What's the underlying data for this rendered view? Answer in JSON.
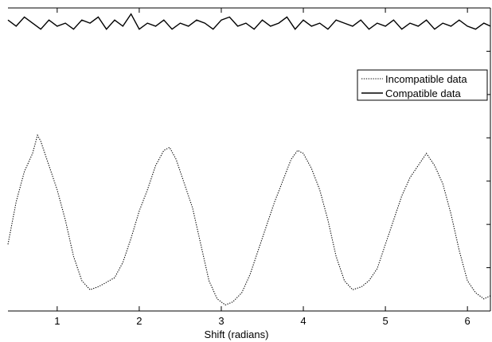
{
  "chart_data": {
    "type": "line",
    "xlabel": "Shift (radians)",
    "ylabel": "",
    "title": "",
    "xlim": [
      0.4,
      6.28
    ],
    "ylim": [
      0,
      1
    ],
    "x_ticks": [
      1,
      2,
      3,
      4,
      5,
      6
    ],
    "x_tick_labels": [
      "1",
      "2",
      "3",
      "4",
      "5",
      "6"
    ],
    "grid": false,
    "legend": {
      "position": "upper-right",
      "entries": [
        "Incompatible data",
        "Compatible data"
      ]
    },
    "series": [
      {
        "name": "Incompatible data",
        "style": "dotted",
        "color": "#000000",
        "x": [
          0.4,
          0.5,
          0.6,
          0.7,
          0.76,
          0.8,
          0.9,
          1.0,
          1.1,
          1.2,
          1.3,
          1.4,
          1.5,
          1.57,
          1.7,
          1.8,
          1.9,
          2.0,
          2.1,
          2.2,
          2.3,
          2.37,
          2.45,
          2.55,
          2.65,
          2.75,
          2.85,
          2.95,
          3.05,
          3.14,
          3.25,
          3.35,
          3.45,
          3.55,
          3.65,
          3.75,
          3.85,
          3.93,
          4.0,
          4.1,
          4.2,
          4.3,
          4.4,
          4.5,
          4.6,
          4.71,
          4.8,
          4.9,
          5.0,
          5.1,
          5.2,
          5.3,
          5.4,
          5.5,
          5.6,
          5.7,
          5.8,
          5.9,
          6.0,
          6.1,
          6.2,
          6.28
        ],
        "y": [
          0.22,
          0.36,
          0.46,
          0.52,
          0.58,
          0.56,
          0.48,
          0.4,
          0.3,
          0.18,
          0.1,
          0.07,
          0.08,
          0.09,
          0.11,
          0.16,
          0.24,
          0.33,
          0.4,
          0.48,
          0.53,
          0.54,
          0.5,
          0.42,
          0.34,
          0.22,
          0.1,
          0.04,
          0.02,
          0.03,
          0.06,
          0.12,
          0.2,
          0.28,
          0.36,
          0.43,
          0.5,
          0.53,
          0.52,
          0.47,
          0.4,
          0.3,
          0.18,
          0.1,
          0.07,
          0.08,
          0.1,
          0.14,
          0.22,
          0.3,
          0.38,
          0.44,
          0.48,
          0.52,
          0.48,
          0.42,
          0.32,
          0.2,
          0.1,
          0.06,
          0.04,
          0.05
        ]
      },
      {
        "name": "Compatible data",
        "style": "solid",
        "color": "#000000",
        "x": [
          0.4,
          0.5,
          0.6,
          0.7,
          0.8,
          0.9,
          1.0,
          1.1,
          1.2,
          1.3,
          1.4,
          1.5,
          1.6,
          1.7,
          1.8,
          1.9,
          2.0,
          2.1,
          2.2,
          2.3,
          2.4,
          2.5,
          2.6,
          2.7,
          2.8,
          2.9,
          3.0,
          3.1,
          3.2,
          3.3,
          3.4,
          3.5,
          3.6,
          3.7,
          3.8,
          3.9,
          4.0,
          4.1,
          4.2,
          4.3,
          4.4,
          4.5,
          4.6,
          4.7,
          4.8,
          4.9,
          5.0,
          5.1,
          5.2,
          5.3,
          5.4,
          5.5,
          5.6,
          5.7,
          5.8,
          5.9,
          6.0,
          6.1,
          6.2,
          6.28
        ],
        "y": [
          0.96,
          0.94,
          0.97,
          0.95,
          0.93,
          0.96,
          0.94,
          0.95,
          0.93,
          0.96,
          0.95,
          0.97,
          0.93,
          0.96,
          0.94,
          0.98,
          0.93,
          0.95,
          0.94,
          0.96,
          0.93,
          0.95,
          0.94,
          0.96,
          0.95,
          0.93,
          0.96,
          0.97,
          0.94,
          0.95,
          0.93,
          0.96,
          0.94,
          0.95,
          0.97,
          0.93,
          0.96,
          0.94,
          0.95,
          0.93,
          0.96,
          0.95,
          0.94,
          0.96,
          0.93,
          0.95,
          0.94,
          0.96,
          0.93,
          0.95,
          0.94,
          0.96,
          0.93,
          0.95,
          0.94,
          0.96,
          0.94,
          0.93,
          0.95,
          0.94
        ]
      }
    ]
  }
}
